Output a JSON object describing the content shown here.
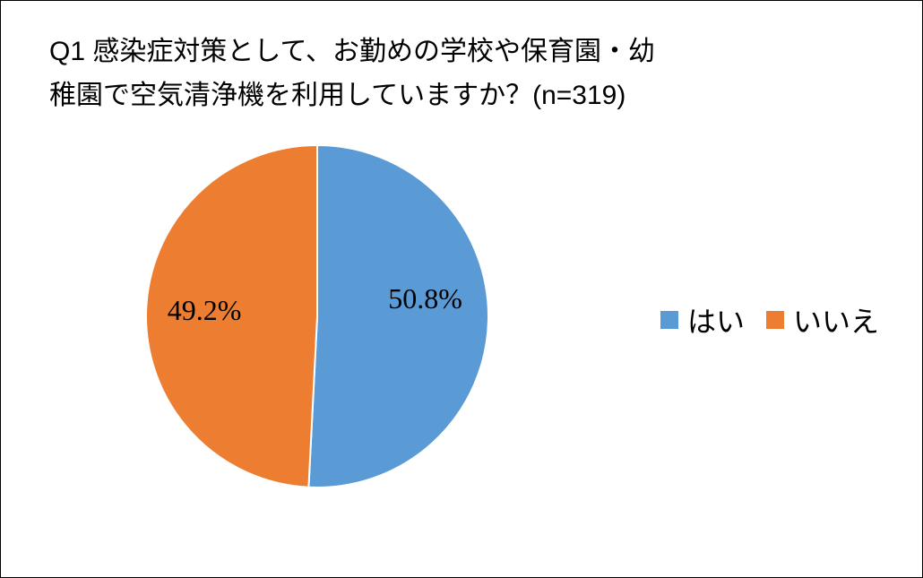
{
  "chart_data": {
    "type": "pie",
    "title_line1_ascii": "Q1 ",
    "title_line1_text": "感染症対策として、お勤めの学校や保育園・幼",
    "title_line2_text": "稚園で空気清浄機を利用していますか？",
    "title_line2_ascii": "(n=319)",
    "categories": [
      "はい",
      "いいえ"
    ],
    "values": [
      50.8,
      49.2
    ],
    "value_labels": [
      "50.8%",
      "49.2%"
    ],
    "colors": [
      "#5B9BD5",
      "#ED7D31"
    ],
    "legend_position": "right",
    "start": "12 o'clock",
    "direction": "clockwise"
  }
}
